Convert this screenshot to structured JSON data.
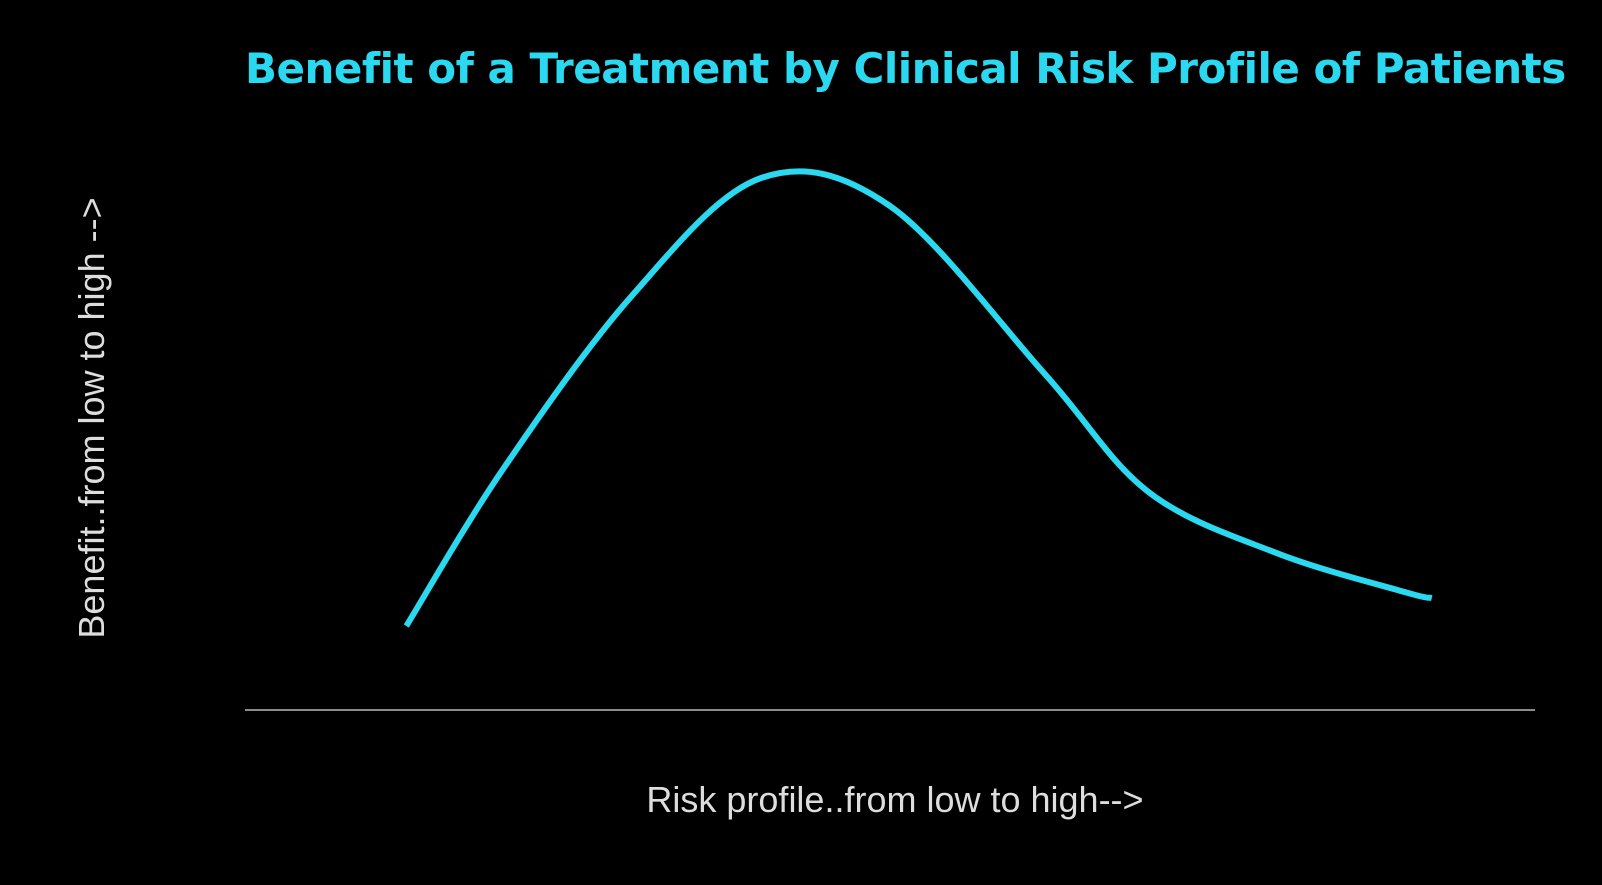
{
  "chart_data": {
    "type": "line",
    "title": "Benefit of a Treatment by Clinical Risk Profile of Patients",
    "xlabel": "Risk profile..from low to high-->",
    "ylabel": "Benefit..from low to high -->",
    "xlim": [
      0,
      10
    ],
    "ylim": [
      0,
      10
    ],
    "grid": false,
    "legend": "none",
    "series": [
      {
        "x": [
          1.25,
          2.0,
          3.0,
          4.0,
          5.0,
          6.2,
          7.0,
          8.0,
          9.0,
          9.2
        ],
        "y": [
          1.5,
          4.3,
          7.4,
          9.5,
          9.0,
          6.0,
          3.9,
          2.8,
          2.1,
          2.0
        ]
      }
    ],
    "colors": {
      "background": "#000000",
      "line": "#2ad8ef",
      "axis": "#bbbbbb",
      "title": "#2ad8ef",
      "label": "#dddddd"
    }
  }
}
